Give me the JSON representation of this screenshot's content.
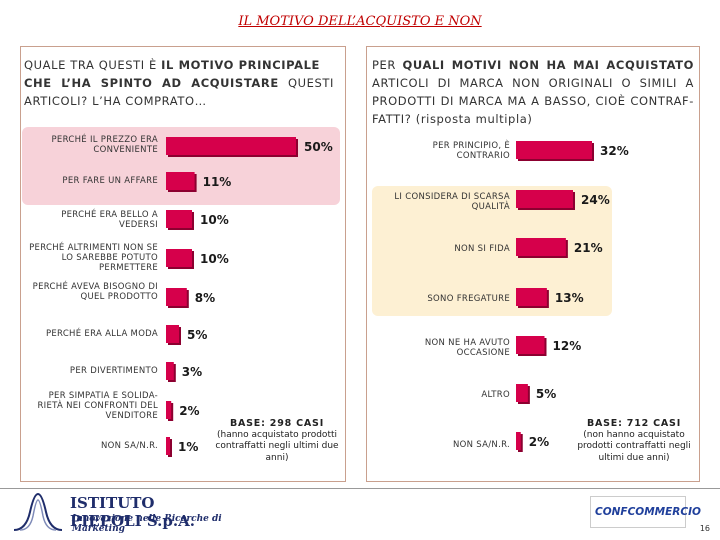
{
  "title": "IL MOTIVO DELL’ACQUISTO E NON",
  "left": {
    "question_plain1": "QUALE TRA QUESTI È ",
    "question_bold1": "IL MOTIVO PRINCIPALE",
    "question_bold2": "CHE L’HA SPINTO AD ACQUISTARE",
    "question_plain2": " QUESTI ARTICOLI? L’HA COMPRATO…",
    "base_head": "BASE: 298 CASI",
    "base_text": "(hanno acquistato prodotti contraffatti negli ultimi due anni)"
  },
  "right": {
    "question_plain1": "PER ",
    "question_bold1": "QUALI MOTIVI NON HA MAI ACQUISTATO",
    "question_plain2": " ARTICOLI DI MARCA NON ORIGINALI O SIMILI A PRODOTTI DI MARCA MA A BASSO, CIOÈ CONTRAF-FATTI? (risposta multipla)",
    "base_head": "BASE: 712 CASI",
    "base_text": "(non hanno acquistato prodotti contraffatti negli ultimi due anni)"
  },
  "chart_data": [
    {
      "type": "bar",
      "orientation": "horizontal",
      "title": "QUALE TRA QUESTI È IL MOTIVO PRINCIPALE CHE L’HA SPINTO AD ACQUISTARE QUESTI ARTICOLI? L’HA COMPRATO…",
      "categories": [
        "PERCHÉ IL PREZZO ERA CONVENIENTE",
        "PER FARE UN AFFARE",
        "PERCHÉ ERA BELLO A VEDERSI",
        "PERCHÉ ALTRIMENTI NON SE LO SAREBBE POTUTO PERMETTERE",
        "PERCHÉ AVEVA BISOGNO DI QUEL PRODOTTO",
        "PERCHÉ ERA ALLA MODA",
        "PER DIVERTIMENTO",
        "PER SIMPATIA E SOLIDA-RIETÀ NEI CONFRONTI DEL VENDITORE",
        "NON SA/N.R."
      ],
      "values": [
        50,
        11,
        10,
        10,
        8,
        5,
        3,
        2,
        1
      ],
      "value_labels": [
        "50%",
        "11%",
        "10%",
        "10%",
        "8%",
        "5%",
        "3%",
        "2%",
        "1%"
      ],
      "unit": "%",
      "xlim": [
        0,
        50
      ]
    },
    {
      "type": "bar",
      "orientation": "horizontal",
      "title": "PER QUALI MOTIVI NON HA MAI ACQUISTATO ARTICOLI DI MARCA NON ORIGINALI O SIMILI A PRODOTTI DI MARCA MA A BASSO, CIOÈ CONTRAFFATTI? (risposta multipla)",
      "categories": [
        "PER PRINCIPIO, È CONTRARIO",
        "LI CONSIDERA DI SCARSA QUALITÀ",
        "NON SI FIDA",
        "SONO FREGATURE",
        "NON NE HA AVUTO OCCASIONE",
        "ALTRO",
        "NON SA/N.R."
      ],
      "values": [
        32,
        24,
        21,
        13,
        12,
        5,
        2
      ],
      "value_labels": [
        "32%",
        "24%",
        "21%",
        "13%",
        "12%",
        "5%",
        "2%"
      ],
      "unit": "%",
      "xlim": [
        0,
        32
      ]
    }
  ],
  "footer": {
    "logo_left_name": "ISTITUTO PIEPOLI S.p.A.",
    "logo_left_tagline": "Innovazione nelle Ricerche di Marketing",
    "logo_right_name": "CONFCOMMERCIO",
    "page_number": "16"
  },
  "colors": {
    "bar": "#d6004b",
    "bar_shadow": "#8c0030",
    "title": "#c00000",
    "highlight_left": "#f7d2d9",
    "highlight_right": "#fdf0d3"
  }
}
